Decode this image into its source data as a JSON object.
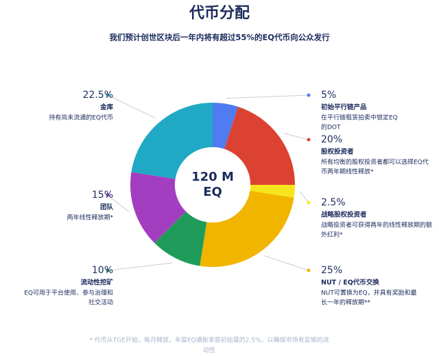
{
  "chart_data": {
    "type": "donut",
    "title": "代币分配",
    "subtitle": "我们预计创世区块后一年内将有超过55%的EQ代币向公众发行",
    "center_text": [
      "120 M",
      "EQ"
    ],
    "categories": [
      "初始平行链产品",
      "股权投资者",
      "战略股权投资者",
      "NUT / EQ代币交换",
      "流动性挖矿",
      "团队",
      "金库"
    ],
    "values": [
      5,
      20,
      2.5,
      25,
      10,
      15,
      22.5
    ],
    "value_labels": [
      "5%",
      "20%",
      "2.5%",
      "25%",
      "10%",
      "15%",
      "22.5%"
    ],
    "colors": [
      "#4f7cf0",
      "#dc4232",
      "#f6e51c",
      "#f1b500",
      "#1f9c59",
      "#a43ec0",
      "#20a9c5"
    ],
    "descriptions": [
      [
        "在平行链租赁拍卖中锁定EQ",
        "的DOT"
      ],
      [
        "所有均衡的股权投资者都可以选择EQ代",
        "币两年期线性释放*"
      ],
      [
        "战略投资者可获得两年的线性释放期的额",
        "外红利*"
      ],
      [
        "NUT可置换为EQ，并具有奖励和最",
        "长一年的释放期**"
      ],
      [
        "EQ可用于平台使用、参与治理和",
        "社交活动"
      ],
      [
        "两年线性释放期*"
      ],
      [
        "持有尚未流通的EQ代币"
      ]
    ],
    "footnote": [
      "* 代币从TGE开始，每月释放，年度EQ通胀率是初始量的2.5%，以确保市场有足够的流",
      "动性"
    ]
  }
}
